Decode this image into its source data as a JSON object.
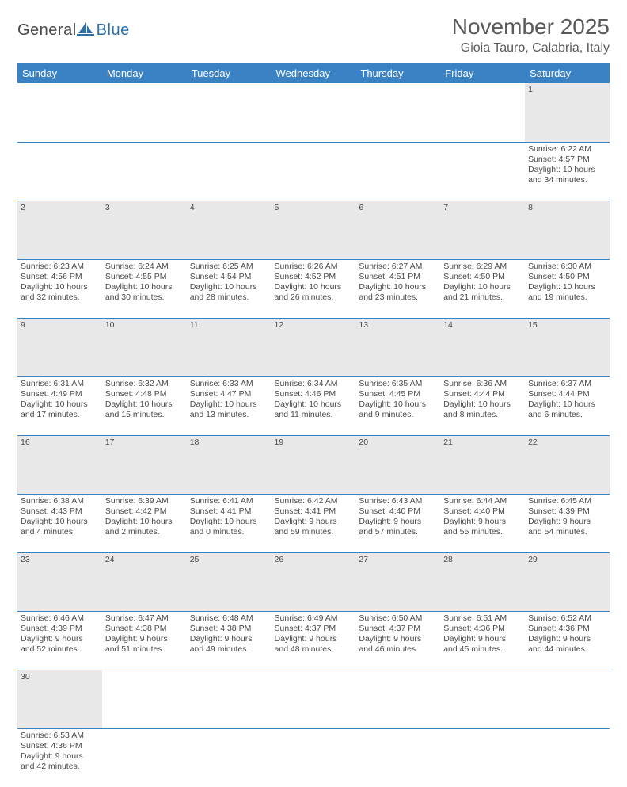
{
  "brand": {
    "part1": "General",
    "part2": "Blue"
  },
  "title": "November 2025",
  "location": "Gioia Tauro, Calabria, Italy",
  "colors": {
    "header_bg": "#3b82c4",
    "header_fg": "#ffffff",
    "daynum_bg": "#e8e8e8",
    "row_divider": "#3b82c4",
    "text": "#4a4a4a",
    "brand_blue": "#2f6fa8",
    "brand_gray": "#4a4a4a"
  },
  "weekdays": [
    "Sunday",
    "Monday",
    "Tuesday",
    "Wednesday",
    "Thursday",
    "Friday",
    "Saturday"
  ],
  "weeks": [
    [
      null,
      null,
      null,
      null,
      null,
      null,
      {
        "n": "1",
        "sr": "6:22 AM",
        "ss": "4:57 PM",
        "dl": "10 hours and 34 minutes."
      }
    ],
    [
      {
        "n": "2",
        "sr": "6:23 AM",
        "ss": "4:56 PM",
        "dl": "10 hours and 32 minutes."
      },
      {
        "n": "3",
        "sr": "6:24 AM",
        "ss": "4:55 PM",
        "dl": "10 hours and 30 minutes."
      },
      {
        "n": "4",
        "sr": "6:25 AM",
        "ss": "4:54 PM",
        "dl": "10 hours and 28 minutes."
      },
      {
        "n": "5",
        "sr": "6:26 AM",
        "ss": "4:52 PM",
        "dl": "10 hours and 26 minutes."
      },
      {
        "n": "6",
        "sr": "6:27 AM",
        "ss": "4:51 PM",
        "dl": "10 hours and 23 minutes."
      },
      {
        "n": "7",
        "sr": "6:29 AM",
        "ss": "4:50 PM",
        "dl": "10 hours and 21 minutes."
      },
      {
        "n": "8",
        "sr": "6:30 AM",
        "ss": "4:50 PM",
        "dl": "10 hours and 19 minutes."
      }
    ],
    [
      {
        "n": "9",
        "sr": "6:31 AM",
        "ss": "4:49 PM",
        "dl": "10 hours and 17 minutes."
      },
      {
        "n": "10",
        "sr": "6:32 AM",
        "ss": "4:48 PM",
        "dl": "10 hours and 15 minutes."
      },
      {
        "n": "11",
        "sr": "6:33 AM",
        "ss": "4:47 PM",
        "dl": "10 hours and 13 minutes."
      },
      {
        "n": "12",
        "sr": "6:34 AM",
        "ss": "4:46 PM",
        "dl": "10 hours and 11 minutes."
      },
      {
        "n": "13",
        "sr": "6:35 AM",
        "ss": "4:45 PM",
        "dl": "10 hours and 9 minutes."
      },
      {
        "n": "14",
        "sr": "6:36 AM",
        "ss": "4:44 PM",
        "dl": "10 hours and 8 minutes."
      },
      {
        "n": "15",
        "sr": "6:37 AM",
        "ss": "4:44 PM",
        "dl": "10 hours and 6 minutes."
      }
    ],
    [
      {
        "n": "16",
        "sr": "6:38 AM",
        "ss": "4:43 PM",
        "dl": "10 hours and 4 minutes."
      },
      {
        "n": "17",
        "sr": "6:39 AM",
        "ss": "4:42 PM",
        "dl": "10 hours and 2 minutes."
      },
      {
        "n": "18",
        "sr": "6:41 AM",
        "ss": "4:41 PM",
        "dl": "10 hours and 0 minutes."
      },
      {
        "n": "19",
        "sr": "6:42 AM",
        "ss": "4:41 PM",
        "dl": "9 hours and 59 minutes."
      },
      {
        "n": "20",
        "sr": "6:43 AM",
        "ss": "4:40 PM",
        "dl": "9 hours and 57 minutes."
      },
      {
        "n": "21",
        "sr": "6:44 AM",
        "ss": "4:40 PM",
        "dl": "9 hours and 55 minutes."
      },
      {
        "n": "22",
        "sr": "6:45 AM",
        "ss": "4:39 PM",
        "dl": "9 hours and 54 minutes."
      }
    ],
    [
      {
        "n": "23",
        "sr": "6:46 AM",
        "ss": "4:39 PM",
        "dl": "9 hours and 52 minutes."
      },
      {
        "n": "24",
        "sr": "6:47 AM",
        "ss": "4:38 PM",
        "dl": "9 hours and 51 minutes."
      },
      {
        "n": "25",
        "sr": "6:48 AM",
        "ss": "4:38 PM",
        "dl": "9 hours and 49 minutes."
      },
      {
        "n": "26",
        "sr": "6:49 AM",
        "ss": "4:37 PM",
        "dl": "9 hours and 48 minutes."
      },
      {
        "n": "27",
        "sr": "6:50 AM",
        "ss": "4:37 PM",
        "dl": "9 hours and 46 minutes."
      },
      {
        "n": "28",
        "sr": "6:51 AM",
        "ss": "4:36 PM",
        "dl": "9 hours and 45 minutes."
      },
      {
        "n": "29",
        "sr": "6:52 AM",
        "ss": "4:36 PM",
        "dl": "9 hours and 44 minutes."
      }
    ],
    [
      {
        "n": "30",
        "sr": "6:53 AM",
        "ss": "4:36 PM",
        "dl": "9 hours and 42 minutes."
      },
      null,
      null,
      null,
      null,
      null,
      null
    ]
  ],
  "labels": {
    "sunrise": "Sunrise:",
    "sunset": "Sunset:",
    "daylight": "Daylight:"
  }
}
